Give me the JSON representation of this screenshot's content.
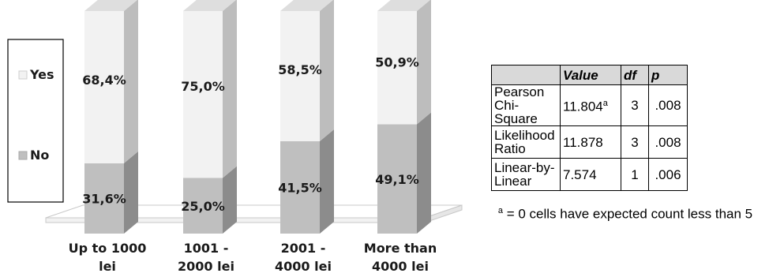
{
  "chart_data": {
    "type": "bar",
    "stacked": true,
    "percent": true,
    "categories": [
      "Up to 1000 lei",
      "1001 - 2000 lei",
      "2001 - 4000 lei",
      "More than 4000 lei"
    ],
    "category_lines": [
      [
        "Up to 1000",
        "lei"
      ],
      [
        "1001 -",
        "2000 lei"
      ],
      [
        "2001 -",
        "4000 lei"
      ],
      [
        "More than",
        "4000 lei"
      ]
    ],
    "series": [
      {
        "name": "No",
        "values": [
          31.6,
          25.0,
          41.5,
          49.1
        ],
        "labels": [
          "31,6%",
          "25,0%",
          "41,5%",
          "49,1%"
        ],
        "color": "#bfbfbf"
      },
      {
        "name": "Yes",
        "values": [
          68.4,
          75.0,
          58.5,
          50.9
        ],
        "labels": [
          "68,4%",
          "75,0%",
          "58,5%",
          "50,9%"
        ],
        "color": "#f2f2f2"
      }
    ],
    "ylim": [
      0,
      100
    ],
    "legend": {
      "position": "left",
      "items": [
        "Yes",
        "No"
      ]
    },
    "grid": false
  },
  "table": {
    "headers": [
      "",
      "Value",
      "df",
      "p"
    ],
    "rows": [
      {
        "label": "Pearson Chi-Square",
        "value": "11.804",
        "sup": "a",
        "df": "3",
        "p": ".008"
      },
      {
        "label": "Likelihood Ratio",
        "value": "11.878",
        "sup": "",
        "df": "3",
        "p": ".008"
      },
      {
        "label": "Linear-by-Linear",
        "value": "7.574",
        "sup": "",
        "df": "1",
        "p": ".006"
      }
    ],
    "note_sup": "a",
    "note": " = 0 cells have expected count less than 5"
  }
}
